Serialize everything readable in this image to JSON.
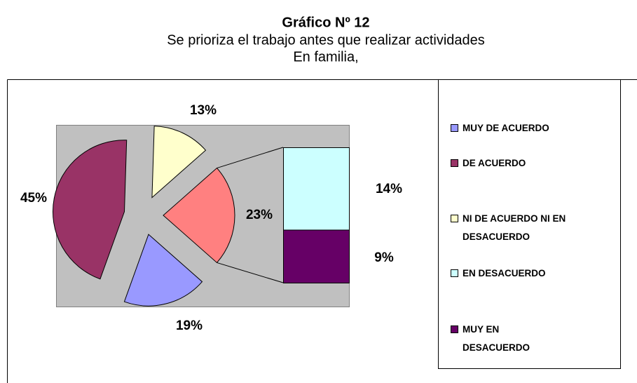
{
  "chart_data": {
    "type": "bar_of_pie",
    "title": "Gráfico Nº 12",
    "subtitle": [
      "Se prioriza el trabajo antes que realizar actividades",
      "En familia,"
    ],
    "categories": [
      "MUY DE ACUERDO",
      "DE ACUERDO",
      "NI DE ACUERDO NI EN DESACUERDO",
      "EN DESACUERDO",
      "MUY EN DESACUERDO"
    ],
    "values": [
      19,
      45,
      13,
      14,
      9
    ],
    "value_labels": [
      "19%",
      "45%",
      "13%",
      "14%",
      "9%"
    ],
    "colors": [
      "#9999ff",
      "#993366",
      "#ffffcc",
      "#ccffff",
      "#660066"
    ],
    "secondary_count": 2,
    "other": {
      "value": 23,
      "label": "23%",
      "color": "#ff8080"
    }
  }
}
